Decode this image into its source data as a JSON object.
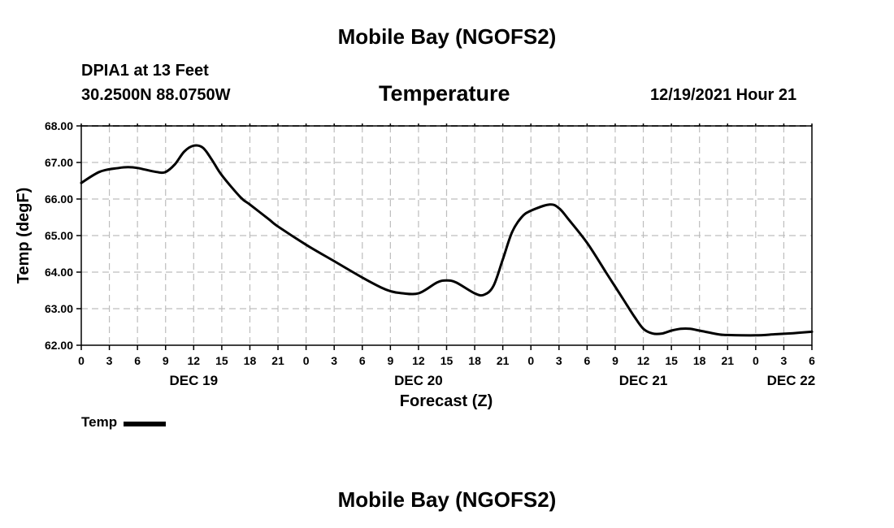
{
  "header": {
    "title_top": "Mobile Bay (NGOFS2)",
    "station": "DPIA1 at 13 Feet",
    "coords": "30.2500N  88.0750W",
    "datetime": "12/19/2021 Hour 21",
    "title_bottom": "Mobile Bay (NGOFS2)"
  },
  "chart_data": {
    "type": "line",
    "title": "Temperature",
    "ylabel": "Temp (degF)",
    "xlabel": "Forecast (Z)",
    "xlim": [
      0,
      78
    ],
    "ylim": [
      62,
      68
    ],
    "grid": true,
    "y_ticks": [
      "62.00",
      "63.00",
      "64.00",
      "65.00",
      "66.00",
      "67.00",
      "68.00"
    ],
    "x_ticks": [
      {
        "hour": 0,
        "label": "0"
      },
      {
        "hour": 3,
        "label": "3"
      },
      {
        "hour": 6,
        "label": "6"
      },
      {
        "hour": 9,
        "label": "9"
      },
      {
        "hour": 12,
        "label": "12"
      },
      {
        "hour": 15,
        "label": "15"
      },
      {
        "hour": 18,
        "label": "18"
      },
      {
        "hour": 21,
        "label": "21"
      },
      {
        "hour": 24,
        "label": "0"
      },
      {
        "hour": 27,
        "label": "3"
      },
      {
        "hour": 30,
        "label": "6"
      },
      {
        "hour": 33,
        "label": "9"
      },
      {
        "hour": 36,
        "label": "12"
      },
      {
        "hour": 39,
        "label": "15"
      },
      {
        "hour": 42,
        "label": "18"
      },
      {
        "hour": 45,
        "label": "21"
      },
      {
        "hour": 48,
        "label": "0"
      },
      {
        "hour": 51,
        "label": "3"
      },
      {
        "hour": 54,
        "label": "6"
      },
      {
        "hour": 57,
        "label": "9"
      },
      {
        "hour": 60,
        "label": "12"
      },
      {
        "hour": 63,
        "label": "15"
      },
      {
        "hour": 66,
        "label": "18"
      },
      {
        "hour": 69,
        "label": "21"
      },
      {
        "hour": 72,
        "label": "0"
      },
      {
        "hour": 75,
        "label": "3"
      },
      {
        "hour": 78,
        "label": "6"
      }
    ],
    "day_labels": [
      {
        "hour": 12,
        "label": "DEC 19"
      },
      {
        "hour": 36,
        "label": "DEC 20"
      },
      {
        "hour": 60,
        "label": "DEC 21"
      },
      {
        "hour": 75,
        "label": "DEC 22"
      }
    ],
    "series": [
      {
        "name": "Temp",
        "x": [
          0,
          2,
          4,
          5,
          6,
          8,
          9,
          10,
          11,
          12,
          13,
          14,
          15,
          17,
          18,
          20,
          21,
          24,
          27,
          30,
          32,
          33,
          34,
          36,
          38,
          39,
          40,
          42,
          43,
          44,
          45,
          46,
          47,
          48,
          50,
          51,
          52,
          54,
          56,
          57,
          58,
          59,
          60,
          61,
          62,
          63,
          64,
          65,
          66,
          68,
          69,
          72,
          74,
          76,
          78
        ],
        "y": [
          66.44,
          66.75,
          66.85,
          66.87,
          66.85,
          66.74,
          66.74,
          66.95,
          67.3,
          67.46,
          67.4,
          67.05,
          66.65,
          66.05,
          65.85,
          65.45,
          65.25,
          64.75,
          64.3,
          63.85,
          63.58,
          63.48,
          63.43,
          63.42,
          63.72,
          63.77,
          63.72,
          63.42,
          63.38,
          63.62,
          64.35,
          65.1,
          65.5,
          65.68,
          65.85,
          65.75,
          65.45,
          64.8,
          64.0,
          63.6,
          63.2,
          62.8,
          62.45,
          62.32,
          62.32,
          62.4,
          62.45,
          62.45,
          62.4,
          62.3,
          62.28,
          62.27,
          62.3,
          62.33,
          62.37
        ]
      }
    ],
    "legend": {
      "label": "Temp",
      "position": "bottom-left"
    }
  }
}
